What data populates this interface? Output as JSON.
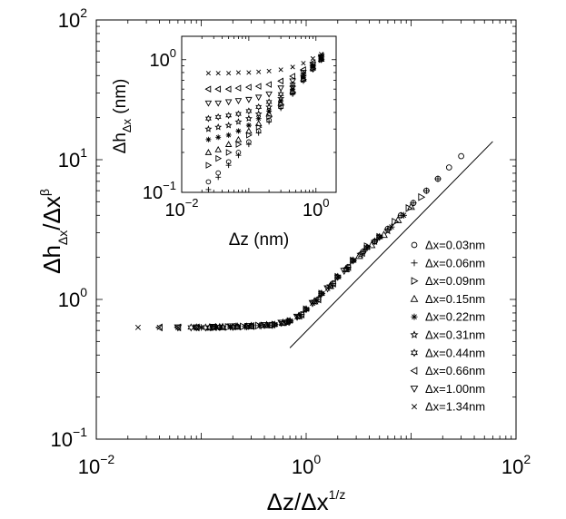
{
  "chart_data": [
    {
      "type": "scatter",
      "panel": "main",
      "xscale": "log",
      "yscale": "log",
      "xlim": [
        0.01,
        100
      ],
      "ylim": [
        0.1,
        100
      ],
      "x_ticks": [
        {
          "value": 0.01,
          "base": "10",
          "exp": "−2"
        },
        {
          "value": 1,
          "base": "10",
          "exp": "0"
        },
        {
          "value": 100,
          "base": "10",
          "exp": "2"
        }
      ],
      "y_ticks": [
        {
          "value": 0.1,
          "base": "10",
          "exp": "−1"
        },
        {
          "value": 1,
          "base": "10",
          "exp": "0"
        },
        {
          "value": 10,
          "base": "10",
          "exp": "1"
        },
        {
          "value": 100,
          "base": "10",
          "exp": "2"
        }
      ],
      "xlabel": {
        "main": "Δz/Δx",
        "sup": "1/z"
      },
      "ylabel": {
        "main": "Δh",
        "sub": "Δx",
        "mid": "/Δx",
        "sup": "β"
      },
      "legend_position": "lower-right",
      "plateau_value": 0.63,
      "fit_line": {
        "x": [
          0.7,
          60
        ],
        "y": [
          0.45,
          13.5
        ]
      },
      "series": [
        {
          "name": "Δx=0.03nm",
          "marker": "circle",
          "x": [
            0.15,
            0.22,
            0.3,
            0.45,
            0.65,
            0.9,
            1.3,
            1.8,
            2.5,
            3.5,
            4.5,
            6,
            8,
            10.5,
            14,
            18,
            23,
            30
          ],
          "y": [
            0.63,
            0.64,
            0.645,
            0.655,
            0.69,
            0.78,
            1.0,
            1.3,
            1.7,
            2.2,
            2.6,
            3.2,
            4.0,
            4.9,
            6.0,
            7.3,
            8.8,
            10.6
          ]
        },
        {
          "name": "Δx=0.06nm",
          "marker": "plus",
          "x": [
            0.15,
            0.22,
            0.3,
            0.45,
            0.65,
            0.9,
            1.3,
            1.8,
            2.5,
            3.5,
            4.5,
            6,
            8,
            10.5,
            14,
            18
          ],
          "y": [
            0.63,
            0.64,
            0.645,
            0.655,
            0.69,
            0.78,
            1.0,
            1.3,
            1.7,
            2.2,
            2.6,
            3.2,
            4.0,
            4.9,
            6.0,
            7.3
          ]
        },
        {
          "name": "Δx=0.09nm",
          "marker": "triangle-right",
          "x": [
            0.13,
            0.18,
            0.25,
            0.35,
            0.5,
            0.7,
            1.0,
            1.4,
            2.0,
            2.8,
            3.8,
            5,
            7,
            9.5,
            12.5
          ],
          "y": [
            0.63,
            0.635,
            0.64,
            0.65,
            0.66,
            0.7,
            0.85,
            1.1,
            1.45,
            1.9,
            2.4,
            2.8,
            3.6,
            4.5,
            5.4
          ]
        },
        {
          "name": "Δx=0.15nm",
          "marker": "triangle-up",
          "x": [
            0.12,
            0.16,
            0.22,
            0.3,
            0.42,
            0.6,
            0.85,
            1.2,
            1.7,
            2.4,
            3.2,
            4.2,
            5.5,
            7.5,
            10
          ],
          "y": [
            0.63,
            0.635,
            0.64,
            0.645,
            0.655,
            0.68,
            0.76,
            0.97,
            1.25,
            1.65,
            2.05,
            2.45,
            2.9,
            3.7,
            4.6
          ]
        },
        {
          "name": "Δx=0.22nm",
          "marker": "asterisk",
          "x": [
            0.1,
            0.14,
            0.19,
            0.26,
            0.36,
            0.5,
            0.7,
            1.0,
            1.4,
            2.0,
            2.8,
            3.8,
            5,
            6.5,
            8.5
          ],
          "y": [
            0.63,
            0.63,
            0.635,
            0.64,
            0.65,
            0.66,
            0.7,
            0.85,
            1.1,
            1.45,
            1.9,
            2.35,
            2.8,
            3.3,
            4.0
          ]
        },
        {
          "name": "Δx=0.31nm",
          "marker": "star",
          "x": [
            0.09,
            0.12,
            0.16,
            0.22,
            0.3,
            0.42,
            0.6,
            0.85,
            1.2,
            1.7,
            2.4,
            3.3,
            4.5,
            6
          ],
          "y": [
            0.63,
            0.63,
            0.635,
            0.64,
            0.645,
            0.655,
            0.68,
            0.76,
            0.97,
            1.25,
            1.65,
            2.1,
            2.6,
            3.1
          ]
        },
        {
          "name": "Δx=0.44nm",
          "marker": "hexagram",
          "x": [
            0.08,
            0.11,
            0.15,
            0.2,
            0.27,
            0.37,
            0.5,
            0.7,
            1.0,
            1.4,
            2.0,
            2.8,
            3.8,
            5
          ],
          "y": [
            0.63,
            0.63,
            0.635,
            0.635,
            0.64,
            0.65,
            0.66,
            0.7,
            0.85,
            1.1,
            1.45,
            1.9,
            2.35,
            2.8
          ]
        },
        {
          "name": "Δx=0.66nm",
          "marker": "triangle-left",
          "x": [
            0.04,
            0.06,
            0.09,
            0.13,
            0.2,
            0.3,
            0.45,
            0.65,
            0.9,
            1.3,
            1.8,
            2.5,
            3.4
          ],
          "y": [
            0.63,
            0.63,
            0.63,
            0.635,
            0.64,
            0.645,
            0.655,
            0.69,
            0.78,
            1.0,
            1.3,
            1.7,
            2.15
          ]
        },
        {
          "name": "Δx=1.00nm",
          "marker": "triangle-down",
          "x": [
            0.06,
            0.09,
            0.13,
            0.19,
            0.28,
            0.4,
            0.58,
            0.82,
            1.15,
            1.6,
            2.3
          ],
          "y": [
            0.63,
            0.63,
            0.635,
            0.64,
            0.645,
            0.655,
            0.68,
            0.75,
            0.94,
            1.2,
            1.6
          ]
        },
        {
          "name": "Δx=1.34nm",
          "marker": "cross",
          "x": [
            0.025,
            0.04,
            0.06,
            0.09,
            0.13,
            0.19,
            0.28,
            0.4,
            0.58,
            0.82,
            1.15,
            1.6
          ],
          "y": [
            0.63,
            0.63,
            0.63,
            0.63,
            0.635,
            0.64,
            0.645,
            0.655,
            0.68,
            0.75,
            0.94,
            1.2
          ]
        }
      ]
    },
    {
      "type": "scatter",
      "panel": "inset",
      "xscale": "log",
      "yscale": "log",
      "xlim": [
        0.01,
        2
      ],
      "ylim": [
        0.1,
        1.5
      ],
      "x_ticks": [
        {
          "value": 0.01,
          "base": "10",
          "exp": "−2"
        },
        {
          "value": 1,
          "base": "10",
          "exp": "0"
        }
      ],
      "y_ticks": [
        {
          "value": 0.1,
          "base": "10",
          "exp": "−1"
        },
        {
          "value": 1,
          "base": "10",
          "exp": "0"
        }
      ],
      "xlabel": {
        "main": "Δz (nm)"
      },
      "ylabel": {
        "main": "Δh",
        "sub": "Δx",
        "tail": " (nm)"
      },
      "series": [
        {
          "name": "Δx=0.03nm",
          "marker": "circle",
          "x": [
            0.025,
            0.035,
            0.05,
            0.07,
            0.1,
            0.14,
            0.2,
            0.3,
            0.45,
            0.65,
            0.9,
            1.2
          ],
          "y": [
            0.12,
            0.14,
            0.17,
            0.2,
            0.24,
            0.29,
            0.35,
            0.44,
            0.56,
            0.7,
            0.85,
            1.0
          ]
        },
        {
          "name": "Δx=0.06nm",
          "marker": "plus",
          "x": [
            0.025,
            0.035,
            0.05,
            0.07,
            0.1,
            0.14,
            0.2,
            0.3,
            0.45,
            0.65,
            0.9,
            1.2
          ],
          "y": [
            0.105,
            0.13,
            0.16,
            0.19,
            0.23,
            0.28,
            0.34,
            0.43,
            0.55,
            0.69,
            0.84,
            0.99
          ]
        },
        {
          "name": "Δx=0.09nm",
          "marker": "triangle-right",
          "x": [
            0.025,
            0.035,
            0.05,
            0.07,
            0.1,
            0.14,
            0.2,
            0.3,
            0.45,
            0.65,
            0.9,
            1.2
          ],
          "y": [
            0.16,
            0.18,
            0.2,
            0.23,
            0.27,
            0.31,
            0.37,
            0.46,
            0.57,
            0.71,
            0.86,
            1.0
          ]
        },
        {
          "name": "Δx=0.15nm",
          "marker": "triangle-up",
          "x": [
            0.025,
            0.035,
            0.05,
            0.07,
            0.1,
            0.14,
            0.2,
            0.3,
            0.45,
            0.65,
            0.9,
            1.2
          ],
          "y": [
            0.2,
            0.21,
            0.23,
            0.25,
            0.29,
            0.33,
            0.39,
            0.47,
            0.58,
            0.72,
            0.87,
            1.01
          ]
        },
        {
          "name": "Δx=0.22nm",
          "marker": "asterisk",
          "x": [
            0.025,
            0.035,
            0.05,
            0.07,
            0.1,
            0.14,
            0.2,
            0.3,
            0.45,
            0.65,
            0.9,
            1.2
          ],
          "y": [
            0.25,
            0.26,
            0.27,
            0.29,
            0.32,
            0.36,
            0.41,
            0.49,
            0.6,
            0.73,
            0.88,
            1.02
          ]
        },
        {
          "name": "Δx=0.31nm",
          "marker": "star",
          "x": [
            0.025,
            0.035,
            0.05,
            0.07,
            0.1,
            0.14,
            0.2,
            0.3,
            0.45,
            0.65,
            0.9,
            1.2
          ],
          "y": [
            0.3,
            0.31,
            0.32,
            0.34,
            0.36,
            0.39,
            0.44,
            0.51,
            0.62,
            0.75,
            0.89,
            1.03
          ]
        },
        {
          "name": "Δx=0.44nm",
          "marker": "hexagram",
          "x": [
            0.025,
            0.035,
            0.05,
            0.07,
            0.1,
            0.14,
            0.2,
            0.3,
            0.45,
            0.65,
            0.9,
            1.2
          ],
          "y": [
            0.36,
            0.37,
            0.38,
            0.39,
            0.41,
            0.44,
            0.48,
            0.55,
            0.65,
            0.77,
            0.9,
            1.04
          ]
        },
        {
          "name": "Δx=0.66nm",
          "marker": "triangle-left",
          "x": [
            0.025,
            0.035,
            0.05,
            0.07,
            0.1,
            0.14,
            0.2,
            0.3,
            0.45,
            0.65,
            0.9,
            1.2
          ],
          "y": [
            0.6,
            0.6,
            0.6,
            0.61,
            0.62,
            0.63,
            0.65,
            0.69,
            0.75,
            0.84,
            0.95,
            1.07
          ]
        },
        {
          "name": "Δx=1.00nm",
          "marker": "triangle-down",
          "x": [
            0.025,
            0.035,
            0.05,
            0.07,
            0.1,
            0.14,
            0.2,
            0.3,
            0.45,
            0.65,
            0.9,
            1.2
          ],
          "y": [
            0.47,
            0.47,
            0.48,
            0.49,
            0.5,
            0.52,
            0.55,
            0.61,
            0.69,
            0.8,
            0.92,
            1.05
          ]
        },
        {
          "name": "Δx=1.34nm",
          "marker": "cross",
          "x": [
            0.025,
            0.035,
            0.05,
            0.07,
            0.1,
            0.14,
            0.2,
            0.3,
            0.45,
            0.65,
            0.9,
            1.2
          ],
          "y": [
            0.79,
            0.79,
            0.79,
            0.8,
            0.8,
            0.81,
            0.82,
            0.84,
            0.88,
            0.94,
            1.02,
            1.1
          ]
        }
      ]
    }
  ]
}
